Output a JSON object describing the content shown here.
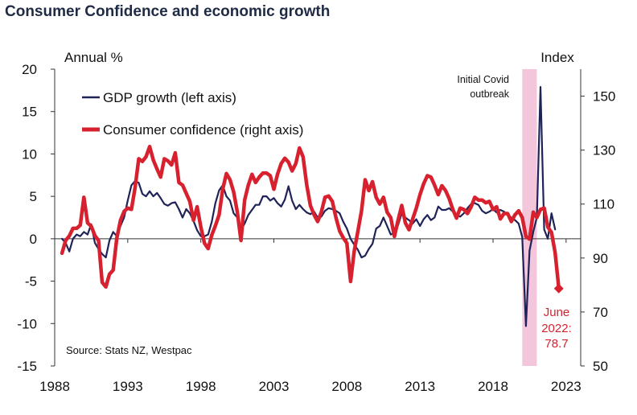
{
  "chart_data": {
    "type": "line",
    "title": "Consumer Confidence and economic growth",
    "left_axis_label": "Annual %",
    "right_axis_label": "Index",
    "source": "Source: Stats NZ, Westpac",
    "left_ylim": [
      -15,
      20
    ],
    "left_ticks": [
      "20",
      "15",
      "10",
      "5",
      "0",
      "-5",
      "-10",
      "-15"
    ],
    "right_ylim": [
      50,
      160
    ],
    "right_ticks": [
      "150",
      "130",
      "110",
      "90",
      "70",
      "50"
    ],
    "xlim": [
      1988,
      2024
    ],
    "x_ticks": [
      "1988",
      "1993",
      "1998",
      "2003",
      "2008",
      "2013",
      "2018",
      "2023"
    ],
    "grid": false,
    "legend_position": "top-left",
    "shaded_period": {
      "start": 2020.0,
      "end": 2021.0,
      "label_line1": "Initial Covid",
      "label_line2": "outbreak",
      "color": "#f4c6dc"
    },
    "end_annotation": {
      "line1": "June",
      "line2": "2022:",
      "line3": "78.7",
      "x": 2022.5,
      "y": 78.7
    },
    "series": [
      {
        "name": "GDP growth (left axis)",
        "axis": "left",
        "color": "#1f2357",
        "points": [
          [
            1988.5,
            0.0
          ],
          [
            1988.75,
            -0.5
          ],
          [
            1989.0,
            -1.5
          ],
          [
            1989.25,
            0.0
          ],
          [
            1989.5,
            0.5
          ],
          [
            1989.75,
            0.3
          ],
          [
            1990.0,
            0.8
          ],
          [
            1990.25,
            0.5
          ],
          [
            1990.5,
            1.7
          ],
          [
            1990.75,
            -0.5
          ],
          [
            1991.0,
            -1.2
          ],
          [
            1991.25,
            -1.8
          ],
          [
            1991.5,
            -2.2
          ],
          [
            1991.75,
            -0.2
          ],
          [
            1992.0,
            0.8
          ],
          [
            1992.25,
            0.3
          ],
          [
            1992.5,
            1.5
          ],
          [
            1992.75,
            2.5
          ],
          [
            1993.0,
            4.5
          ],
          [
            1993.25,
            6.3
          ],
          [
            1993.5,
            6.8
          ],
          [
            1993.75,
            6.6
          ],
          [
            1994.0,
            5.3
          ],
          [
            1994.25,
            5.0
          ],
          [
            1994.5,
            5.6
          ],
          [
            1994.75,
            5.0
          ],
          [
            1995.0,
            5.4
          ],
          [
            1995.25,
            4.8
          ],
          [
            1995.5,
            4.1
          ],
          [
            1995.75,
            3.9
          ],
          [
            1996.0,
            4.2
          ],
          [
            1996.25,
            4.3
          ],
          [
            1996.5,
            3.5
          ],
          [
            1996.75,
            2.5
          ],
          [
            1997.0,
            3.5
          ],
          [
            1997.25,
            3.0
          ],
          [
            1997.5,
            2.1
          ],
          [
            1997.75,
            1.0
          ],
          [
            1998.0,
            0.3
          ],
          [
            1998.25,
            0.3
          ],
          [
            1998.5,
            0.5
          ],
          [
            1998.75,
            2.0
          ],
          [
            1999.0,
            4.2
          ],
          [
            1999.25,
            5.7
          ],
          [
            1999.5,
            6.3
          ],
          [
            1999.75,
            5.0
          ],
          [
            2000.0,
            4.5
          ],
          [
            2000.25,
            3.0
          ],
          [
            2000.5,
            2.5
          ],
          [
            2000.75,
            1.0
          ],
          [
            2001.0,
            1.8
          ],
          [
            2001.25,
            2.8
          ],
          [
            2001.5,
            3.4
          ],
          [
            2001.75,
            4.0
          ],
          [
            2002.0,
            4.0
          ],
          [
            2002.25,
            5.0
          ],
          [
            2002.5,
            5.0
          ],
          [
            2002.75,
            4.5
          ],
          [
            2003.0,
            4.8
          ],
          [
            2003.25,
            4.2
          ],
          [
            2003.5,
            3.8
          ],
          [
            2003.75,
            4.6
          ],
          [
            2004.0,
            6.2
          ],
          [
            2004.25,
            4.5
          ],
          [
            2004.5,
            3.5
          ],
          [
            2004.75,
            4.0
          ],
          [
            2005.0,
            3.5
          ],
          [
            2005.25,
            3.1
          ],
          [
            2005.5,
            2.9
          ],
          [
            2005.75,
            3.2
          ],
          [
            2006.0,
            2.5
          ],
          [
            2006.25,
            2.6
          ],
          [
            2006.5,
            3.3
          ],
          [
            2006.75,
            3.6
          ],
          [
            2007.0,
            3.5
          ],
          [
            2007.25,
            3.3
          ],
          [
            2007.5,
            3.0
          ],
          [
            2007.75,
            2.0
          ],
          [
            2008.0,
            1.2
          ],
          [
            2008.25,
            0.0
          ],
          [
            2008.5,
            -0.7
          ],
          [
            2008.75,
            -1.3
          ],
          [
            2009.0,
            -2.2
          ],
          [
            2009.25,
            -2.0
          ],
          [
            2009.5,
            -1.2
          ],
          [
            2009.75,
            -0.6
          ],
          [
            2010.0,
            1.2
          ],
          [
            2010.25,
            1.5
          ],
          [
            2010.5,
            2.5
          ],
          [
            2010.75,
            1.5
          ],
          [
            2011.0,
            0.5
          ],
          [
            2011.25,
            0.7
          ],
          [
            2011.5,
            1.6
          ],
          [
            2011.75,
            3.0
          ],
          [
            2012.0,
            2.5
          ],
          [
            2012.25,
            2.2
          ],
          [
            2012.5,
            1.8
          ],
          [
            2012.75,
            2.3
          ],
          [
            2013.0,
            1.5
          ],
          [
            2013.25,
            2.3
          ],
          [
            2013.5,
            2.8
          ],
          [
            2013.75,
            2.2
          ],
          [
            2014.0,
            2.5
          ],
          [
            2014.25,
            3.8
          ],
          [
            2014.5,
            3.4
          ],
          [
            2014.75,
            3.4
          ],
          [
            2015.0,
            3.6
          ],
          [
            2015.25,
            3.2
          ],
          [
            2015.5,
            2.8
          ],
          [
            2015.75,
            2.6
          ],
          [
            2016.0,
            3.0
          ],
          [
            2016.25,
            3.6
          ],
          [
            2016.5,
            4.1
          ],
          [
            2016.75,
            4.2
          ],
          [
            2017.0,
            4.0
          ],
          [
            2017.25,
            3.3
          ],
          [
            2017.5,
            3.0
          ],
          [
            2017.75,
            3.2
          ],
          [
            2018.0,
            3.5
          ],
          [
            2018.25,
            3.1
          ],
          [
            2018.5,
            3.4
          ],
          [
            2018.75,
            3.2
          ],
          [
            2019.0,
            2.8
          ],
          [
            2019.25,
            2.5
          ],
          [
            2019.5,
            2.2
          ],
          [
            2019.75,
            1.8
          ],
          [
            2020.0,
            0.2
          ],
          [
            2020.25,
            -10.3
          ],
          [
            2020.5,
            -1.4
          ],
          [
            2020.75,
            0.8
          ],
          [
            2021.0,
            2.5
          ],
          [
            2021.25,
            17.9
          ],
          [
            2021.5,
            1.1
          ],
          [
            2021.75,
            0.0
          ],
          [
            2022.0,
            3.0
          ],
          [
            2022.25,
            1.1
          ]
        ]
      },
      {
        "name": "Consumer confidence (right axis)",
        "axis": "right",
        "color": "#d7212e",
        "points": [
          [
            1988.5,
            91.8
          ],
          [
            1988.75,
            96.5
          ],
          [
            1989.0,
            98.2
          ],
          [
            1989.25,
            101.0
          ],
          [
            1989.5,
            101.0
          ],
          [
            1989.75,
            102.2
          ],
          [
            1990.0,
            112.5
          ],
          [
            1990.25,
            103.0
          ],
          [
            1990.5,
            101.8
          ],
          [
            1990.75,
            98.3
          ],
          [
            1991.0,
            96.5
          ],
          [
            1991.25,
            81.0
          ],
          [
            1991.5,
            79.3
          ],
          [
            1991.75,
            84.0
          ],
          [
            1992.0,
            85.5
          ],
          [
            1992.25,
            97.3
          ],
          [
            1992.5,
            104.0
          ],
          [
            1992.75,
            107.3
          ],
          [
            1993.0,
            108.5
          ],
          [
            1993.25,
            108.0
          ],
          [
            1993.5,
            116.0
          ],
          [
            1993.75,
            126.8
          ],
          [
            1994.0,
            125.8
          ],
          [
            1994.25,
            127.5
          ],
          [
            1994.5,
            131.3
          ],
          [
            1994.75,
            126.3
          ],
          [
            1995.0,
            123.0
          ],
          [
            1995.25,
            120.0
          ],
          [
            1995.5,
            126.8
          ],
          [
            1995.75,
            126.0
          ],
          [
            1996.0,
            124.5
          ],
          [
            1996.25,
            129.0
          ],
          [
            1996.5,
            118.0
          ],
          [
            1996.75,
            117.0
          ],
          [
            1997.0,
            114.0
          ],
          [
            1997.25,
            111.0
          ],
          [
            1997.5,
            104.0
          ],
          [
            1997.75,
            109.0
          ],
          [
            1998.0,
            101.5
          ],
          [
            1998.25,
            95.5
          ],
          [
            1998.5,
            93.5
          ],
          [
            1998.75,
            98.5
          ],
          [
            1999.0,
            102.0
          ],
          [
            1999.25,
            106.0
          ],
          [
            1999.5,
            115.5
          ],
          [
            1999.75,
            121.3
          ],
          [
            2000.0,
            119.0
          ],
          [
            2000.25,
            114.5
          ],
          [
            2000.5,
            107.0
          ],
          [
            2000.75,
            96.5
          ],
          [
            2001.0,
            111.5
          ],
          [
            2001.25,
            117.0
          ],
          [
            2001.5,
            121.0
          ],
          [
            2001.75,
            118.0
          ],
          [
            2002.0,
            120.0
          ],
          [
            2002.25,
            121.5
          ],
          [
            2002.5,
            121.5
          ],
          [
            2002.75,
            120.5
          ],
          [
            2003.0,
            115.5
          ],
          [
            2003.25,
            121.0
          ],
          [
            2003.5,
            125.0
          ],
          [
            2003.75,
            127.0
          ],
          [
            2004.0,
            125.5
          ],
          [
            2004.25,
            122.3
          ],
          [
            2004.5,
            125.0
          ],
          [
            2004.75,
            130.8
          ],
          [
            2005.0,
            127.5
          ],
          [
            2005.25,
            117.0
          ],
          [
            2005.5,
            109.5
          ],
          [
            2005.75,
            106.0
          ],
          [
            2006.0,
            103.5
          ],
          [
            2006.25,
            107.0
          ],
          [
            2006.5,
            112.5
          ],
          [
            2006.75,
            113.0
          ],
          [
            2007.0,
            111.0
          ],
          [
            2007.25,
            105.0
          ],
          [
            2007.5,
            100.0
          ],
          [
            2007.75,
            97.5
          ],
          [
            2008.0,
            95.5
          ],
          [
            2008.25,
            81.3
          ],
          [
            2008.5,
            92.5
          ],
          [
            2008.75,
            100.0
          ],
          [
            2009.0,
            107.5
          ],
          [
            2009.25,
            119.0
          ],
          [
            2009.5,
            115.0
          ],
          [
            2009.75,
            118.3
          ],
          [
            2010.0,
            112.5
          ],
          [
            2010.25,
            110.0
          ],
          [
            2010.5,
            112.5
          ],
          [
            2010.75,
            107.0
          ],
          [
            2011.0,
            105.0
          ],
          [
            2011.25,
            98.0
          ],
          [
            2011.5,
            104.0
          ],
          [
            2011.75,
            109.5
          ],
          [
            2012.0,
            103.0
          ],
          [
            2012.25,
            100.5
          ],
          [
            2012.5,
            104.5
          ],
          [
            2012.75,
            108.5
          ],
          [
            2013.0,
            113.5
          ],
          [
            2013.25,
            117.5
          ],
          [
            2013.5,
            120.5
          ],
          [
            2013.75,
            120.0
          ],
          [
            2014.0,
            117.0
          ],
          [
            2014.25,
            113.5
          ],
          [
            2014.5,
            116.8
          ],
          [
            2014.75,
            115.0
          ],
          [
            2015.0,
            112.0
          ],
          [
            2015.25,
            108.0
          ],
          [
            2015.5,
            104.8
          ],
          [
            2015.75,
            108.5
          ],
          [
            2016.0,
            108.0
          ],
          [
            2016.25,
            106.5
          ],
          [
            2016.5,
            109.0
          ],
          [
            2016.75,
            112.5
          ],
          [
            2017.0,
            111.5
          ],
          [
            2017.25,
            111.5
          ],
          [
            2017.5,
            110.5
          ],
          [
            2017.75,
            111.0
          ],
          [
            2018.0,
            108.0
          ],
          [
            2018.25,
            109.0
          ],
          [
            2018.5,
            104.5
          ],
          [
            2018.75,
            106.5
          ],
          [
            2019.0,
            106.5
          ],
          [
            2019.25,
            103.5
          ],
          [
            2019.5,
            106.0
          ],
          [
            2019.75,
            107.5
          ],
          [
            2020.0,
            105.0
          ],
          [
            2020.25,
            98.0
          ],
          [
            2020.5,
            97.0
          ],
          [
            2020.75,
            107.0
          ],
          [
            2021.0,
            105.0
          ],
          [
            2021.25,
            108.0
          ],
          [
            2021.5,
            108.5
          ],
          [
            2021.75,
            101.5
          ],
          [
            2022.0,
            99.5
          ],
          [
            2022.25,
            92.0
          ],
          [
            2022.5,
            78.7
          ]
        ]
      }
    ]
  }
}
